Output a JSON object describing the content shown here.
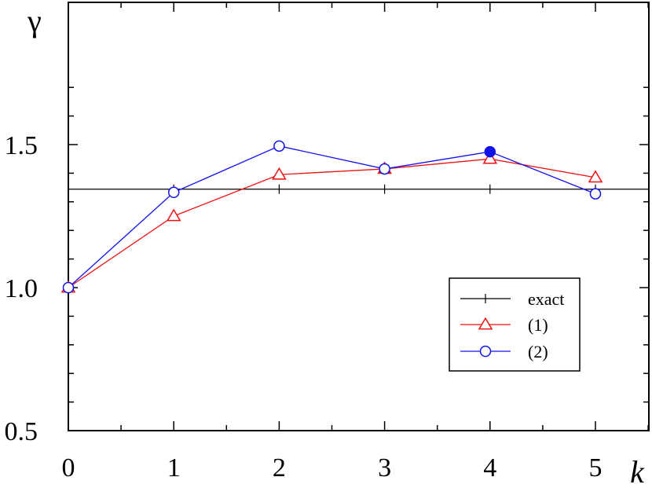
{
  "chart_data": {
    "type": "line",
    "xlabel": "k",
    "ylabel": "γ",
    "xlim": [
      0,
      5.5
    ],
    "ylim": [
      0.5,
      1.5
    ],
    "x_ticks": [
      {
        "value": 0,
        "label": "0"
      },
      {
        "value": 1,
        "label": "1"
      },
      {
        "value": 2,
        "label": "2"
      },
      {
        "value": 3,
        "label": "3"
      },
      {
        "value": 4,
        "label": "4"
      },
      {
        "value": 5,
        "label": "5"
      }
    ],
    "y_ticks": [
      {
        "value": 0.5,
        "label": "0.5"
      },
      {
        "value": 1.0,
        "label": "1.0"
      },
      {
        "value": 1.5,
        "label": "1.5"
      }
    ],
    "grid": false,
    "legend_position": "bottom-right",
    "series": [
      {
        "name": "exact",
        "color": "#000000",
        "marker": "plus",
        "x": [
          0,
          1,
          2,
          3,
          4,
          5,
          5.5
        ],
        "y": [
          1.344,
          1.344,
          1.344,
          1.344,
          1.344,
          1.344,
          1.344
        ]
      },
      {
        "name": "(1)",
        "color": "#ee1111",
        "marker": "triangle",
        "x": [
          0,
          1,
          2,
          3,
          4,
          5
        ],
        "y": [
          1.0,
          1.25,
          1.395,
          1.415,
          1.45,
          1.385
        ],
        "filled": [
          false,
          false,
          false,
          true,
          false,
          false
        ]
      },
      {
        "name": "(2)",
        "color": "#1111ee",
        "marker": "circle",
        "x": [
          0,
          1,
          2,
          3,
          4,
          5
        ],
        "y": [
          1.0,
          1.333,
          1.495,
          1.415,
          1.475,
          1.328
        ],
        "filled": [
          false,
          false,
          false,
          false,
          true,
          false
        ]
      }
    ]
  }
}
